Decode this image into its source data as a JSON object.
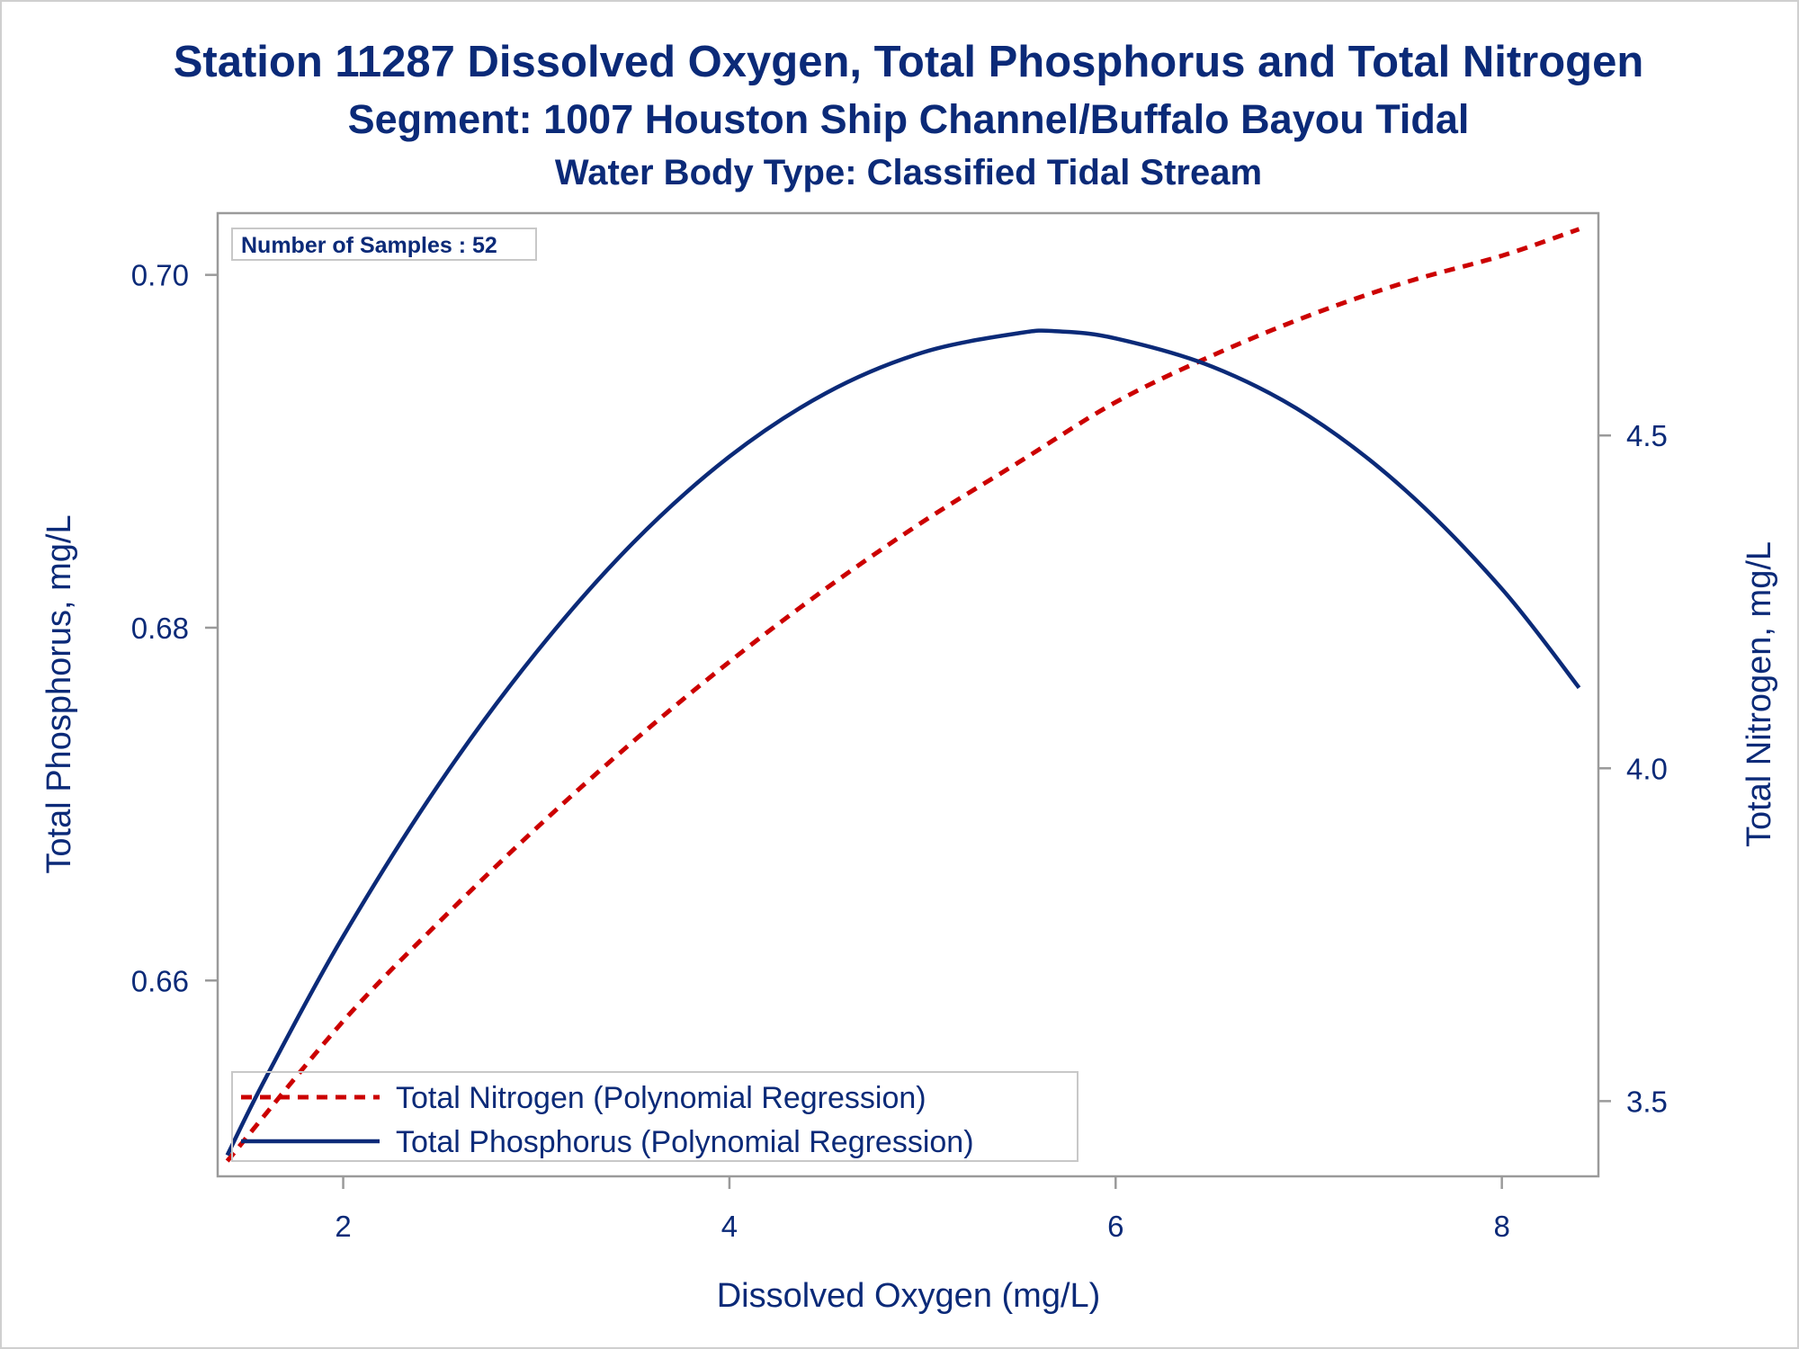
{
  "chart_data": {
    "type": "line",
    "title": "Station 11287  Dissolved Oxygen, Total Phosphorus and Total Nitrogen",
    "subtitle": "Segment: 1007  Houston Ship Channel/Buffalo Bayou Tidal",
    "subtitle2": "Water Body Type: Classified Tidal Stream",
    "inset": "Number of Samples : 52",
    "xlabel": "Dissolved Oxygen (mg/L)",
    "ylabel_left": "Total Phosphorus, mg/L",
    "ylabel_right": "Total Nitrogen, mg/L",
    "xlim": [
      1.35,
      8.5
    ],
    "ylim_left": [
      0.6489,
      0.7035
    ],
    "ylim_right": [
      3.387,
      4.834
    ],
    "xticks": [
      "2",
      "4",
      "6",
      "8"
    ],
    "yticks_left": [
      "0.66",
      "0.68",
      "0.70"
    ],
    "yticks_right": [
      "3.5",
      "4.0",
      "4.5"
    ],
    "grid": false,
    "legend_position": "bottom-left",
    "series": [
      {
        "name": "Total Nitrogen (Polynomial Regression)",
        "axis": "right",
        "style": "dashed",
        "color": "#cc0000",
        "x": [
          1.4,
          2.0,
          2.5,
          3.0,
          3.5,
          4.0,
          4.5,
          5.0,
          5.5,
          6.0,
          6.5,
          7.0,
          7.5,
          8.0,
          8.4
        ],
        "y": [
          3.41,
          3.62,
          3.77,
          3.91,
          4.04,
          4.16,
          4.27,
          4.37,
          4.46,
          4.55,
          4.62,
          4.68,
          4.73,
          4.77,
          4.81
        ]
      },
      {
        "name": "Total Phosphorus (Polynomial Regression)",
        "axis": "left",
        "style": "solid",
        "color": "#0b2a78",
        "x": [
          1.4,
          1.6,
          2.0,
          2.5,
          3.0,
          3.5,
          4.0,
          4.5,
          5.0,
          5.5,
          5.7,
          6.0,
          6.5,
          7.0,
          7.5,
          8.0,
          8.4
        ],
        "y": [
          0.6501,
          0.6545,
          0.6625,
          0.6712,
          0.6786,
          0.6848,
          0.6897,
          0.6933,
          0.6956,
          0.6967,
          0.6968,
          0.6964,
          0.6948,
          0.692,
          0.6878,
          0.6822,
          0.6766
        ]
      }
    ],
    "colors": {
      "text": "#0b2a78",
      "frame": "#9a9a9a"
    }
  }
}
